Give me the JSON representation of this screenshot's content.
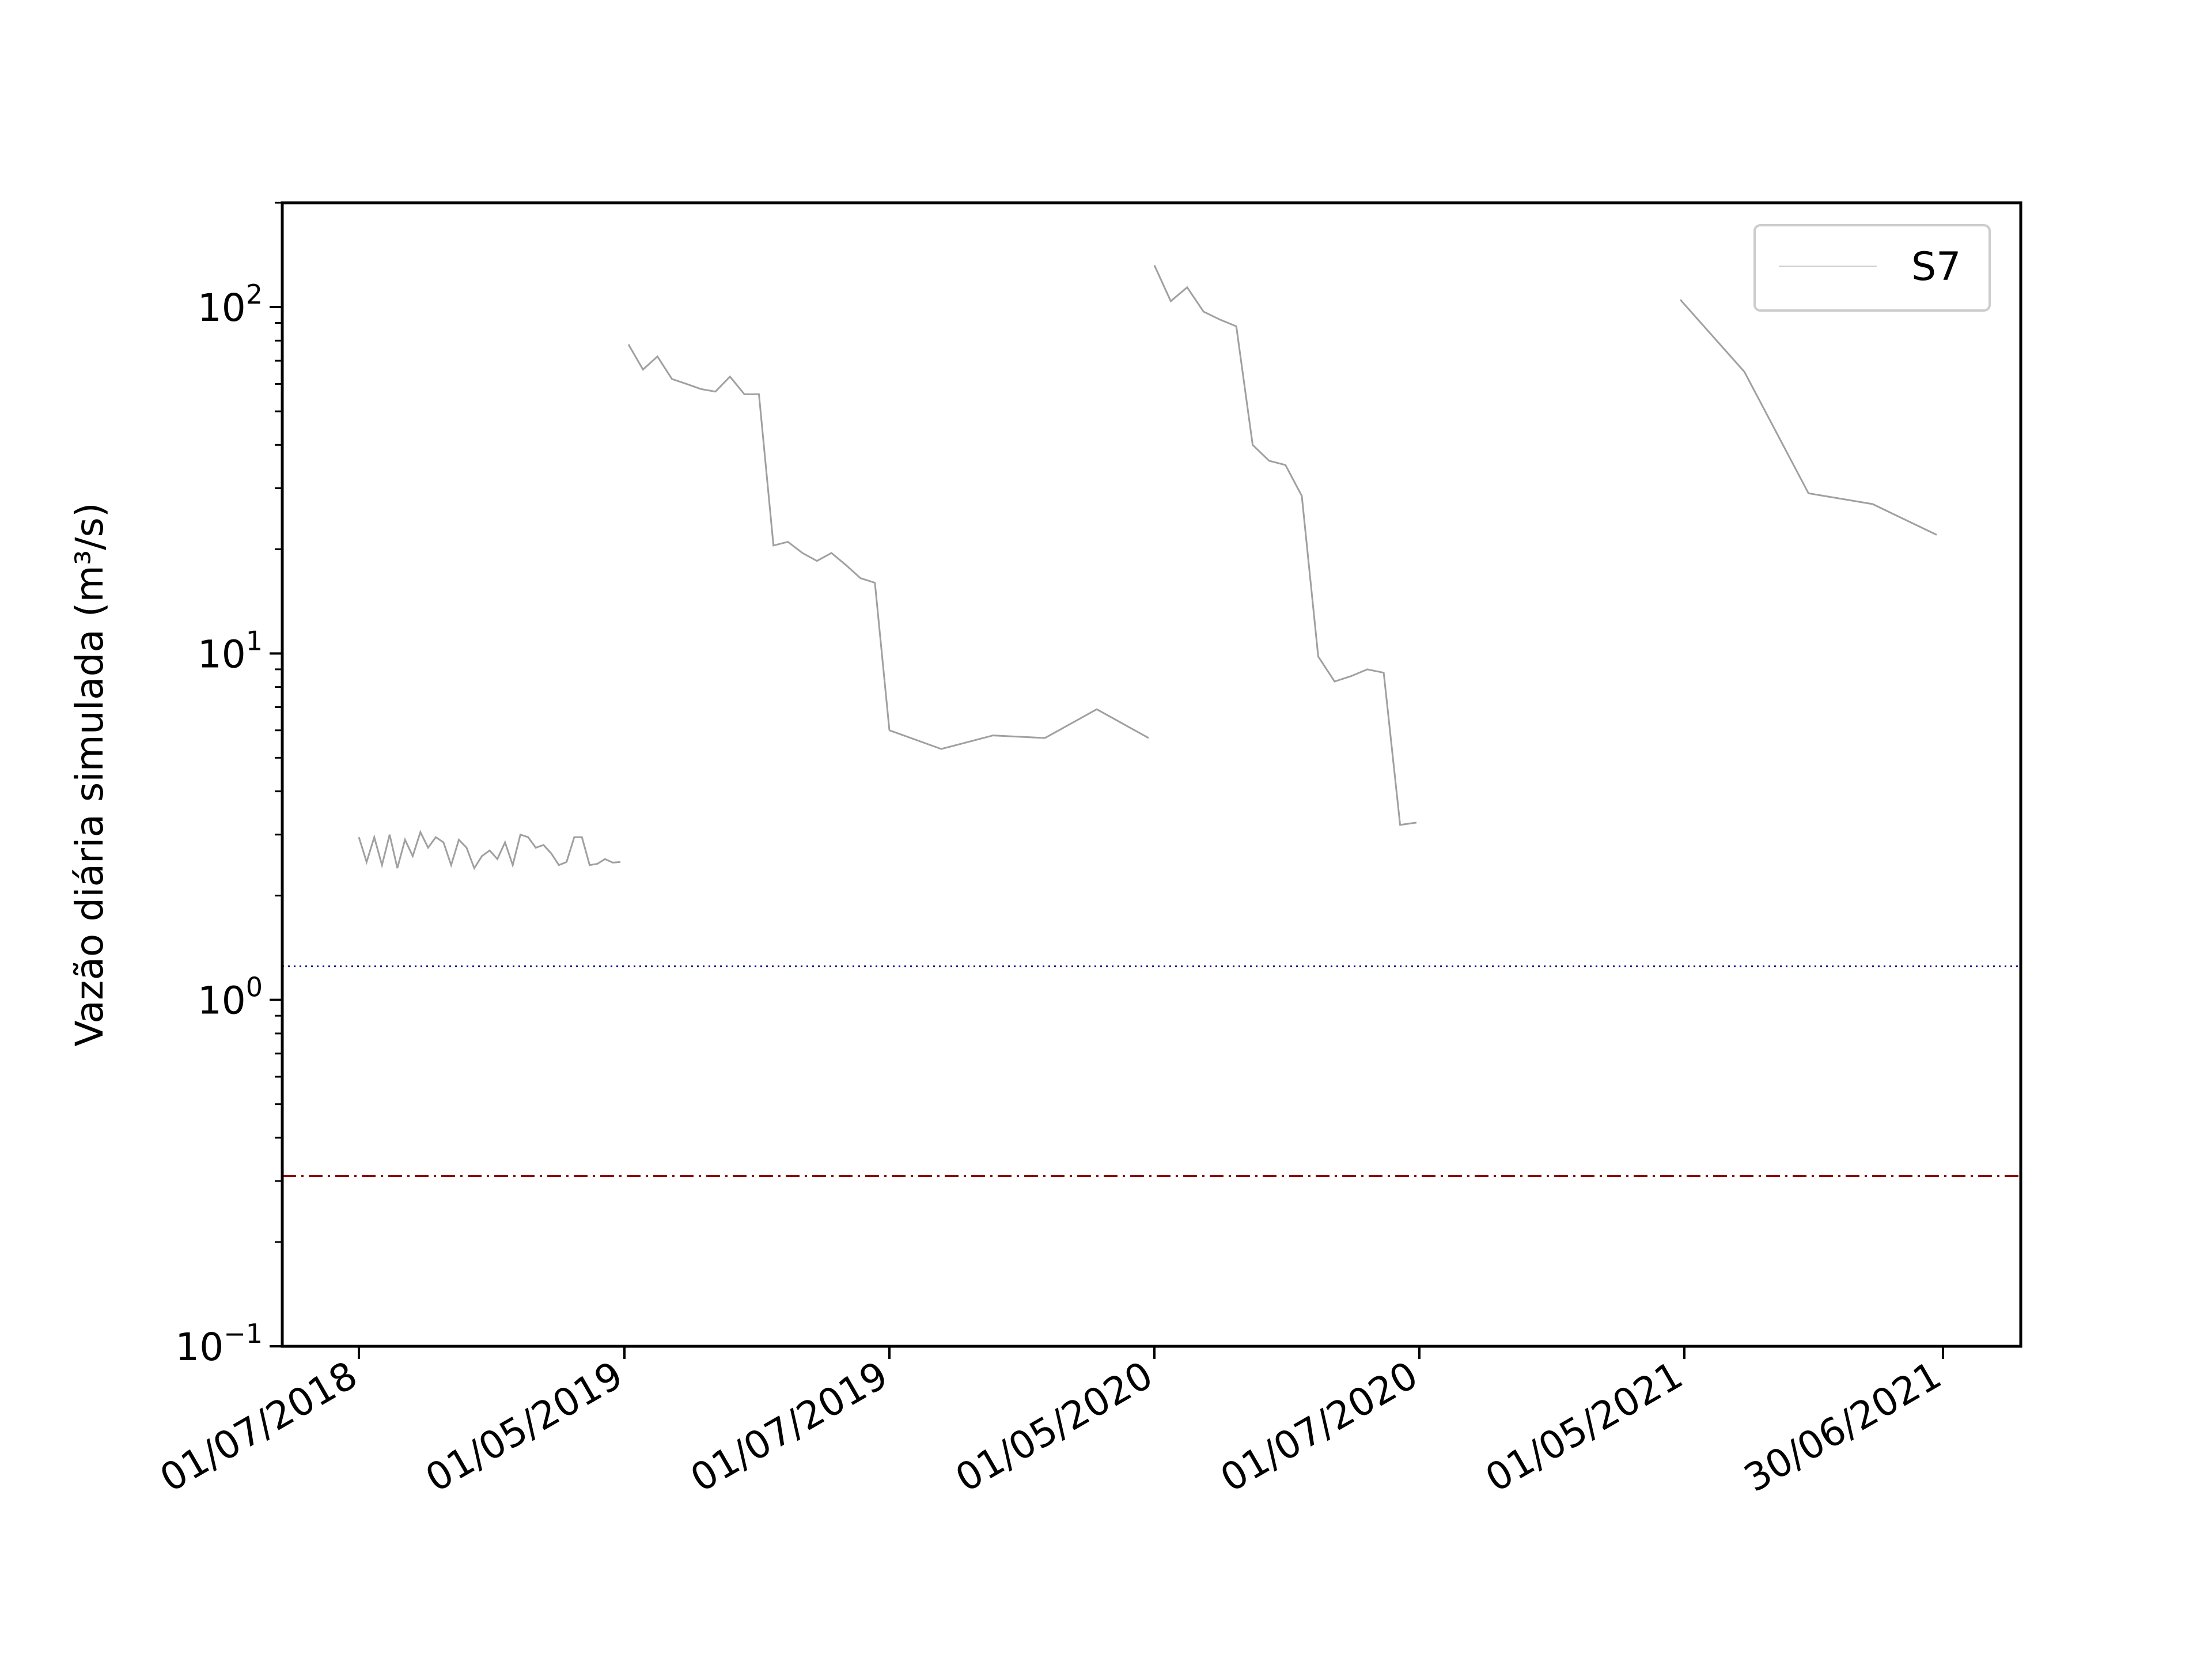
{
  "chart_data": {
    "type": "line",
    "title": "",
    "xlabel": "",
    "ylabel": "Vazão diária simulada (m³/s)",
    "yscale": "log",
    "ylim": [
      0.1,
      200
    ],
    "grid": false,
    "legend": {
      "placement": "top-right",
      "entries": [
        "S7"
      ]
    },
    "x_ticks": [
      "01/07/2018",
      "01/05/2019",
      "01/07/2019",
      "01/05/2020",
      "01/07/2020",
      "01/05/2021",
      "30/06/2021"
    ],
    "y_ticks": [
      {
        "base": "10",
        "exp": "−1",
        "value": 0.1
      },
      {
        "base": "10",
        "exp": "0",
        "value": 1
      },
      {
        "base": "10",
        "exp": "1",
        "value": 10
      },
      {
        "base": "10",
        "exp": "2",
        "value": 100
      }
    ],
    "reference_lines": [
      {
        "value": 1.25,
        "style": "dotted",
        "color": "#00008b"
      },
      {
        "value": 0.31,
        "style": "dashdot",
        "color": "#8b0000"
      }
    ],
    "series": [
      {
        "name": "S7",
        "color": "#a0a0a0",
        "segments": [
          [
            [
              "01/07/2018",
              2.95
            ],
            [
              "01/07/2018",
              2.5
            ],
            [
              "01/07/2018",
              2.95
            ],
            [
              "01/07/2018",
              2.45
            ],
            [
              "01/07/2018",
              3.0
            ],
            [
              "01/07/2018",
              2.4
            ],
            [
              "01/07/2018",
              2.9
            ],
            [
              "01/07/2018",
              2.6
            ],
            [
              "01/07/2018",
              3.05
            ],
            [
              "01/07/2018",
              2.75
            ],
            [
              "01/07/2018",
              2.95
            ],
            [
              "01/07/2018",
              2.85
            ],
            [
              "01/07/2018",
              2.45
            ],
            [
              "01/07/2018",
              2.9
            ],
            [
              "01/07/2018",
              2.75
            ],
            [
              "01/07/2018",
              2.4
            ],
            [
              "01/07/2018",
              2.6
            ],
            [
              "01/07/2018",
              2.7
            ],
            [
              "01/07/2018",
              2.55
            ],
            [
              "01/07/2018",
              2.85
            ],
            [
              "01/07/2018",
              2.45
            ],
            [
              "01/07/2018",
              3.0
            ],
            [
              "01/07/2018",
              2.95
            ],
            [
              "01/07/2018",
              2.75
            ],
            [
              "01/07/2018",
              2.8
            ],
            [
              "01/07/2018",
              2.65
            ],
            [
              "01/07/2018",
              2.45
            ],
            [
              "01/07/2018",
              2.5
            ],
            [
              "01/07/2018",
              2.95
            ],
            [
              "01/07/2018",
              2.95
            ],
            [
              "01/07/2018",
              2.45
            ],
            [
              "01/07/2018",
              2.47
            ],
            [
              "01/07/2018",
              2.55
            ],
            [
              "01/07/2018",
              2.49
            ],
            [
              "01/05/2019",
              2.5
            ]
          ],
          [
            [
              "01/05/2019",
              78
            ],
            [
              "01/05/2019",
              66
            ],
            [
              "01/05/2019",
              72
            ],
            [
              "01/05/2019",
              62
            ],
            [
              "01/05/2019",
              60
            ],
            [
              "01/05/2019",
              58
            ],
            [
              "01/05/2019",
              57
            ],
            [
              "01/05/2019",
              63
            ],
            [
              "01/05/2019",
              56
            ],
            [
              "01/05/2019",
              56
            ],
            [
              "01/05/2019",
              20.5
            ],
            [
              "01/05/2019",
              21
            ],
            [
              "01/05/2019",
              19.5
            ],
            [
              "01/05/2019",
              18.5
            ],
            [
              "01/05/2019",
              19.5
            ],
            [
              "01/05/2019",
              18
            ],
            [
              "01/05/2019",
              16.5
            ],
            [
              "01/07/2019",
              16
            ],
            [
              "01/07/2019",
              6
            ]
          ],
          [
            [
              "01/07/2019",
              6
            ],
            [
              "01/07/2019",
              5.3
            ],
            [
              "01/07/2019",
              5.8
            ],
            [
              "01/07/2019",
              5.7
            ],
            [
              "01/07/2019",
              6.9
            ],
            [
              "01/05/2020",
              5.7
            ]
          ],
          [
            [
              "01/05/2020",
              132
            ],
            [
              "01/05/2020",
              104
            ],
            [
              "01/05/2020",
              114
            ],
            [
              "01/05/2020",
              97
            ],
            [
              "01/05/2020",
              92
            ],
            [
              "01/05/2020",
              88
            ],
            [
              "01/05/2020",
              40
            ],
            [
              "01/05/2020",
              36
            ],
            [
              "01/05/2020",
              35
            ],
            [
              "01/07/2020",
              28.5
            ],
            [
              "01/07/2020",
              9.8
            ],
            [
              "01/07/2020",
              8.3
            ],
            [
              "01/07/2020",
              8.6
            ],
            [
              "01/07/2020",
              9.0
            ],
            [
              "01/07/2020",
              8.8
            ],
            [
              "01/07/2020",
              3.2
            ],
            [
              "01/05/2021",
              3.25
            ]
          ],
          [
            [
              "01/05/2021",
              105
            ],
            [
              "01/05/2021",
              65
            ],
            [
              "01/05/2021",
              29
            ],
            [
              "01/05/2021",
              27
            ],
            [
              "30/06/2021",
              22
            ]
          ]
        ]
      }
    ]
  }
}
